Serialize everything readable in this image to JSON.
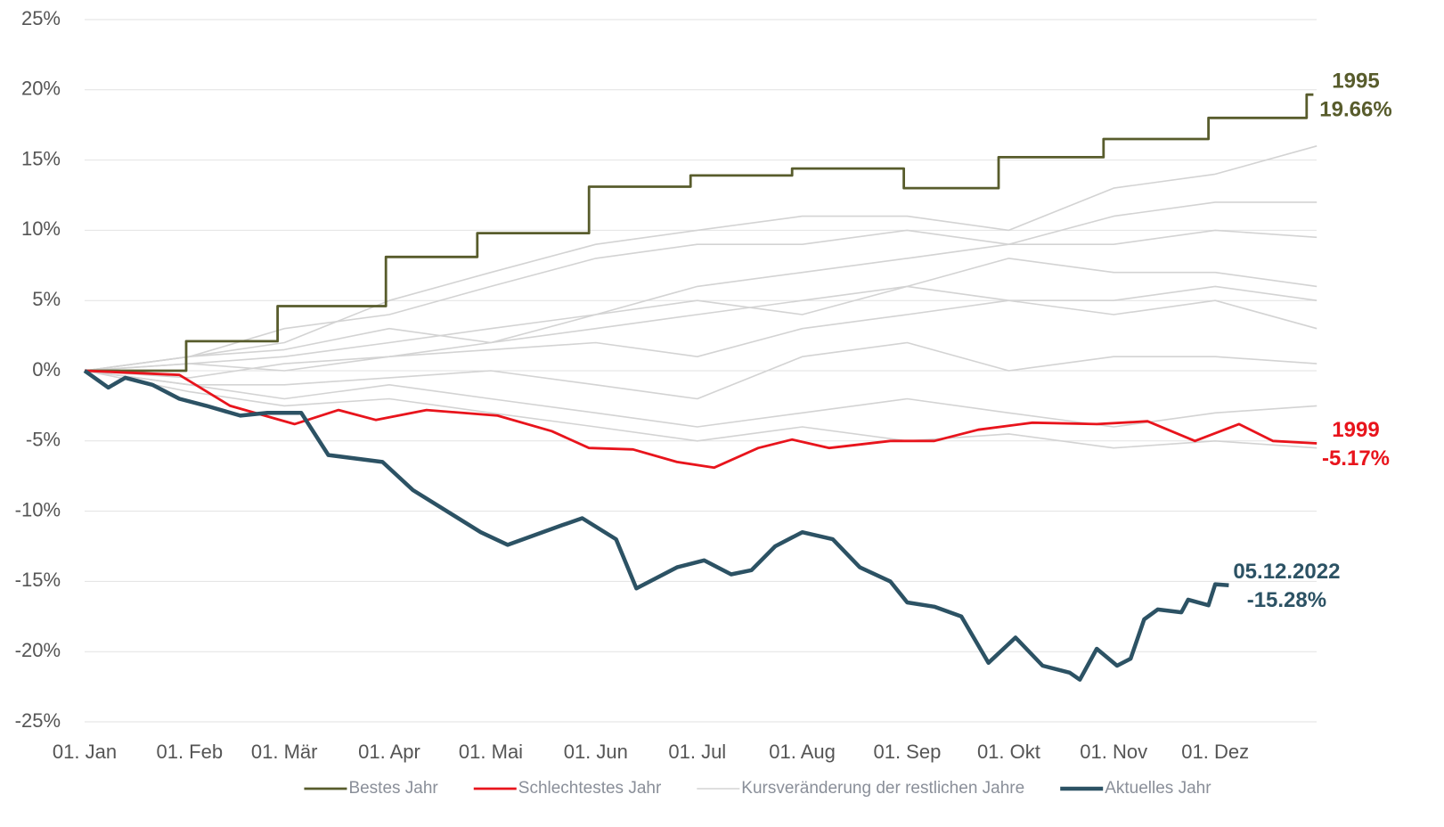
{
  "chart_data": {
    "type": "line",
    "xlim": [
      0,
      365
    ],
    "xticks": [
      {
        "value": 0,
        "label": "01. Jan"
      },
      {
        "value": 31,
        "label": "01. Feb"
      },
      {
        "value": 59,
        "label": "01. Mär"
      },
      {
        "value": 90,
        "label": "01. Apr"
      },
      {
        "value": 120,
        "label": "01. Mai"
      },
      {
        "value": 151,
        "label": "01. Jun"
      },
      {
        "value": 181,
        "label": "01. Jul"
      },
      {
        "value": 212,
        "label": "01. Aug"
      },
      {
        "value": 243,
        "label": "01. Sep"
      },
      {
        "value": 273,
        "label": "01. Okt"
      },
      {
        "value": 304,
        "label": "01. Nov"
      },
      {
        "value": 334,
        "label": "01. Dez"
      }
    ],
    "ylim": [
      -25,
      25
    ],
    "yticks": [
      {
        "value": -25,
        "label": "-25%"
      },
      {
        "value": -20,
        "label": "-20%"
      },
      {
        "value": -15,
        "label": "-15%"
      },
      {
        "value": -10,
        "label": "-10%"
      },
      {
        "value": -5,
        "label": "-5%"
      },
      {
        "value": 0,
        "label": "0%"
      },
      {
        "value": 5,
        "label": "5%"
      },
      {
        "value": 10,
        "label": "10%"
      },
      {
        "value": 15,
        "label": "15%"
      },
      {
        "value": 20,
        "label": "20%"
      },
      {
        "value": 25,
        "label": "25%"
      }
    ],
    "grid": true,
    "legend": "bottom",
    "series": [
      {
        "name": "Bestes Jahr",
        "color": "#585c2c",
        "label": "1995",
        "x": [
          0,
          30,
          30,
          57,
          57,
          89,
          89,
          116,
          116,
          149,
          149,
          179,
          179,
          209,
          209,
          242,
          242,
          270,
          270,
          301,
          301,
          332,
          332,
          361,
          361,
          363
        ],
        "values": [
          0,
          0,
          2.1,
          2.1,
          4.6,
          4.6,
          8.1,
          8.1,
          9.8,
          9.8,
          13.1,
          13.1,
          13.9,
          13.9,
          14.4,
          14.4,
          13.0,
          13.0,
          15.2,
          15.2,
          16.5,
          16.5,
          18.0,
          18.0,
          19.66,
          19.66
        ],
        "value_labels": [
          null,
          null,
          null,
          null,
          null,
          null,
          null,
          null,
          null,
          null,
          null,
          null,
          null,
          null,
          null,
          null,
          null,
          null,
          null,
          null,
          null,
          null,
          null,
          null,
          null,
          "19.66%"
        ]
      },
      {
        "name": "Schlechtestes Jahr",
        "color": "#e8141c",
        "label": "1999",
        "x": [
          0,
          28,
          43,
          62,
          75,
          86,
          101,
          122,
          138,
          149,
          162,
          175,
          186,
          199,
          209,
          220,
          238,
          251,
          264,
          280,
          299,
          314,
          328,
          341,
          351,
          364
        ],
        "values": [
          0,
          -0.3,
          -2.5,
          -3.8,
          -2.8,
          -3.5,
          -2.8,
          -3.2,
          -4.3,
          -5.5,
          -5.6,
          -6.5,
          -6.9,
          -5.5,
          -4.9,
          -5.5,
          -5.0,
          -5.0,
          -4.2,
          -3.7,
          -3.8,
          -3.6,
          -5.0,
          -3.8,
          -5.0,
          -5.17
        ],
        "value_labels": [
          null,
          null,
          null,
          null,
          null,
          null,
          null,
          null,
          null,
          null,
          null,
          null,
          null,
          null,
          null,
          null,
          null,
          null,
          null,
          null,
          null,
          null,
          null,
          null,
          null,
          "-5.17%"
        ]
      },
      {
        "name": "Kursveränderung der restlichen Jahre",
        "color": "#d3d3d3",
        "x": [
          0,
          31,
          59,
          90,
          120,
          151,
          181,
          212,
          243,
          273,
          304,
          334,
          364
        ],
        "values": [
          0,
          1,
          2,
          5,
          7,
          9,
          10,
          11,
          11,
          10,
          13,
          14,
          16
        ]
      },
      {
        "name": "Aktuelles Jahr",
        "color": "#2c5264",
        "label": "05.12.2022",
        "x": [
          0,
          7,
          12,
          20,
          28,
          36,
          46,
          54,
          59,
          64,
          72,
          88,
          97,
          117,
          125,
          141,
          147,
          157,
          163,
          175,
          183,
          191,
          197,
          204,
          212,
          221,
          229,
          238,
          243,
          251,
          259,
          267,
          275,
          283,
          291,
          294,
          299,
          305,
          309,
          313,
          317,
          324,
          326,
          332,
          334,
          338
        ],
        "values": [
          0,
          -1.2,
          -0.5,
          -1,
          -2,
          -2.5,
          -3.2,
          -3,
          -3,
          -3,
          -6,
          -6.5,
          -8.5,
          -11.5,
          -12.4,
          -11,
          -10.5,
          -12,
          -15.5,
          -14,
          -13.5,
          -14.5,
          -14.2,
          -12.5,
          -11.5,
          -12,
          -14,
          -15,
          -16.5,
          -16.8,
          -17.5,
          -20.8,
          -19,
          -21,
          -21.5,
          -22,
          -19.8,
          -21,
          -20.5,
          -17.7,
          -17,
          -17.2,
          -16.3,
          -16.7,
          -15.2,
          -15.28
        ],
        "value_labels": [
          null,
          null,
          null,
          null,
          null,
          null,
          null,
          null,
          null,
          null,
          null,
          null,
          null,
          null,
          null,
          null,
          null,
          null,
          null,
          null,
          null,
          null,
          null,
          null,
          null,
          null,
          null,
          null,
          null,
          null,
          null,
          null,
          null,
          null,
          null,
          null,
          null,
          null,
          null,
          null,
          null,
          null,
          null,
          null,
          null,
          "-15.28%"
        ]
      },
      {
        "color": "#d3d3d3",
        "x": [
          0,
          31,
          59,
          90,
          120,
          151,
          181,
          212,
          243,
          273,
          304,
          334,
          364
        ],
        "values": [
          0,
          1,
          3,
          4,
          6,
          8,
          9,
          9,
          10,
          9,
          11,
          12,
          12
        ]
      },
      {
        "color": "#d3d3d3",
        "x": [
          0,
          31,
          59,
          90,
          120,
          151,
          181,
          212,
          243,
          273,
          304,
          334,
          364
        ],
        "values": [
          0,
          0.5,
          1,
          2,
          3,
          4,
          6,
          7,
          8,
          9,
          9,
          10,
          9.5
        ]
      },
      {
        "color": "#d3d3d3",
        "x": [
          0,
          31,
          59,
          90,
          120,
          151,
          181,
          212,
          243,
          273,
          304,
          334,
          364
        ],
        "values": [
          0,
          -0.5,
          0.5,
          1,
          2,
          3,
          4,
          5,
          6,
          8,
          7,
          7,
          6
        ]
      },
      {
        "color": "#d3d3d3",
        "x": [
          0,
          31,
          59,
          90,
          120,
          151,
          181,
          212,
          243,
          273,
          304,
          334,
          364
        ],
        "values": [
          0,
          0.5,
          0,
          1,
          1.5,
          2,
          1,
          3,
          4,
          5,
          4,
          5,
          3
        ]
      },
      {
        "color": "#d3d3d3",
        "x": [
          0,
          31,
          59,
          90,
          120,
          151,
          181,
          212,
          243,
          273,
          304,
          334,
          364
        ],
        "values": [
          0,
          -1,
          -1,
          -0.5,
          0,
          -1,
          -2,
          1,
          2,
          0,
          1,
          1,
          0.5
        ]
      },
      {
        "color": "#d3d3d3",
        "x": [
          0,
          31,
          59,
          90,
          120,
          151,
          181,
          212,
          243,
          273,
          304,
          334,
          364
        ],
        "values": [
          0,
          -1,
          -2,
          -1,
          -2,
          -3,
          -4,
          -3,
          -2,
          -3,
          -4,
          -3,
          -2.5
        ]
      },
      {
        "color": "#d3d3d3",
        "x": [
          0,
          31,
          59,
          90,
          120,
          151,
          181,
          212,
          243,
          273,
          304,
          334,
          364
        ],
        "values": [
          0,
          -1.5,
          -2.5,
          -2,
          -3,
          -4,
          -5,
          -4,
          -5,
          -4.5,
          -5.5,
          -5,
          -5.5
        ]
      },
      {
        "color": "#d3d3d3",
        "x": [
          0,
          31,
          59,
          90,
          120,
          151,
          181,
          212,
          243,
          273,
          304,
          334,
          364
        ],
        "values": [
          0,
          1,
          1.5,
          3,
          2,
          4,
          5,
          4,
          6,
          5,
          5,
          6,
          5
        ]
      }
    ]
  }
}
